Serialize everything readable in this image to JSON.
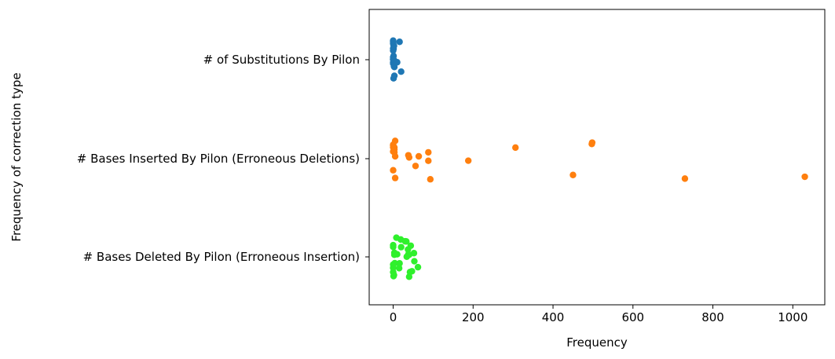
{
  "chart_data": {
    "type": "scatter",
    "subtype": "strip",
    "xlabel": "Frequency",
    "ylabel": "Frequency of correction type",
    "xlim": [
      -60,
      1080
    ],
    "xticks": [
      0,
      200,
      400,
      600,
      800,
      1000
    ],
    "grid": false,
    "categories": [
      "# of Substitutions By Pilon",
      "# Bases Inserted By Pilon (Erroneous Deletions)",
      "# Bases Deleted By Pilon (Erroneous Insertion)"
    ],
    "series": [
      {
        "category": "# of Substitutions By Pilon",
        "color": "#1f77b4",
        "values": [
          0,
          0,
          0,
          1,
          0,
          2,
          16,
          3,
          0,
          1,
          0,
          20,
          2,
          0,
          1,
          0,
          3,
          1,
          10,
          0,
          2,
          0,
          1
        ]
      },
      {
        "category": "# Bases Inserted By Pilon (Erroneous Deletions)",
        "color": "#ff7f0e",
        "values": [
          730,
          498,
          64,
          5,
          0,
          38,
          88,
          56,
          3,
          0,
          93,
          5,
          0,
          188,
          0,
          497,
          0,
          3,
          88,
          5,
          1030,
          306,
          450,
          40,
          3
        ]
      },
      {
        "category": "# Bases Deleted By Pilon (Erroneous Insertion)",
        "color": "#2ff02c",
        "values": [
          53,
          3,
          0,
          16,
          33,
          0,
          40,
          19,
          8,
          52,
          0,
          4,
          1,
          37,
          38,
          34,
          10,
          47,
          3,
          5,
          0,
          44,
          62,
          30,
          20,
          15,
          42,
          40,
          2,
          0
        ]
      }
    ]
  }
}
